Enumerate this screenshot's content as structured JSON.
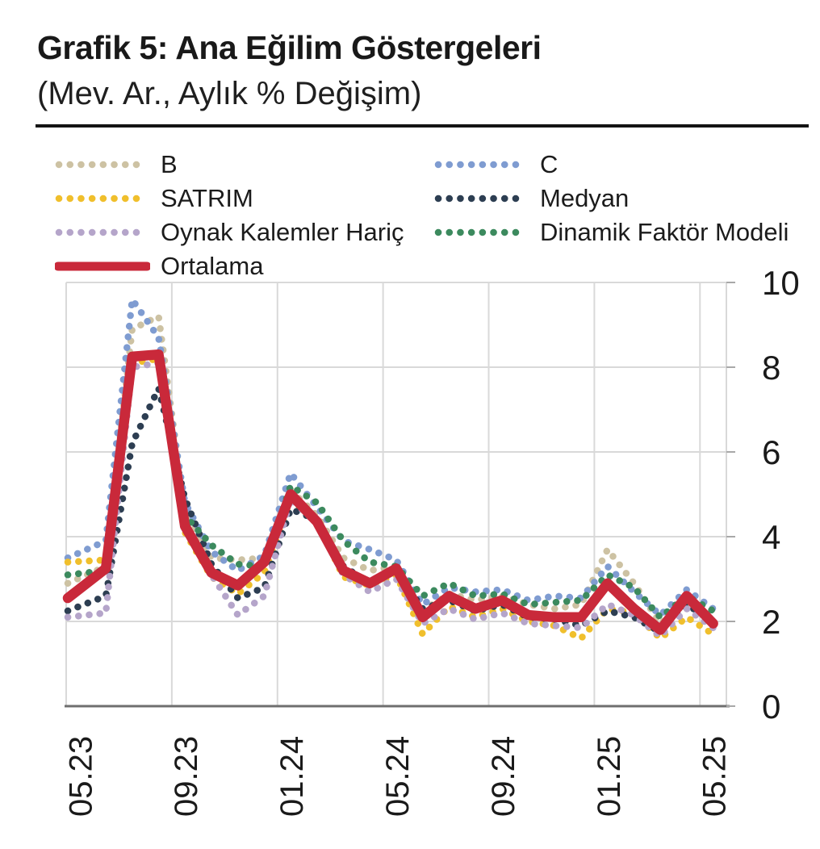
{
  "header": {
    "title": "Grafik 5: Ana Eğilim Göstergeleri",
    "subtitle": "(Mev. Ar., Aylık % Değişim)"
  },
  "legend": {
    "items": [
      {
        "label": "B",
        "color": "#cdc2a3",
        "style": "dotted"
      },
      {
        "label": "C",
        "color": "#7f9cd1",
        "style": "dotted"
      },
      {
        "label": "SATRIM",
        "color": "#f0bf2c",
        "style": "dotted"
      },
      {
        "label": "Medyan",
        "color": "#2d3e52",
        "style": "dotted"
      },
      {
        "label": "Oynak Kalemler Hariç",
        "color": "#b5a5ca",
        "style": "dotted"
      },
      {
        "label": "Dinamik Faktör Modeli",
        "color": "#3c8a5e",
        "style": "dotted"
      },
      {
        "label": "Ortalama",
        "color": "#c9293a",
        "style": "solid"
      }
    ]
  },
  "chart_data": {
    "type": "line",
    "title": "Grafik 5: Ana Eğilim Göstergeleri",
    "subtitle": "(Mev. Ar., Aylık % Değişim)",
    "categories": [
      "05.23",
      "06.23",
      "07.23",
      "08.23",
      "09.23",
      "10.23",
      "11.23",
      "12.23",
      "01.24",
      "02.24",
      "03.24",
      "04.24",
      "05.24",
      "06.24",
      "07.24",
      "08.24",
      "09.24",
      "10.24",
      "11.24",
      "12.24",
      "01.25",
      "02.25",
      "03.25",
      "04.25",
      "05.25"
    ],
    "x_tick_labels": [
      "05.23",
      "09.23",
      "01.24",
      "05.24",
      "09.24",
      "01.25",
      "05.25"
    ],
    "x_label_rotation": -90,
    "y_axis_side": "right",
    "ylim": [
      0,
      10
    ],
    "yticks": [
      0,
      2,
      4,
      6,
      8,
      10
    ],
    "grid": true,
    "legend_position": "top",
    "series": [
      {
        "name": "B",
        "color": "#cdc2a3",
        "style": "dotted",
        "values": [
          2.9,
          3.3,
          8.9,
          9.2,
          4.6,
          3.5,
          3.45,
          3.5,
          5.1,
          4.5,
          3.5,
          3.2,
          3.3,
          2.25,
          2.65,
          2.5,
          2.6,
          2.4,
          2.3,
          2.4,
          3.7,
          2.9,
          1.95,
          2.45,
          2.1
        ]
      },
      {
        "name": "C",
        "color": "#7f9cd1",
        "style": "dotted",
        "values": [
          3.5,
          3.9,
          9.6,
          8.7,
          4.8,
          3.65,
          3.2,
          3.55,
          5.5,
          4.7,
          3.9,
          3.7,
          3.45,
          2.4,
          2.8,
          2.7,
          2.75,
          2.5,
          2.6,
          2.55,
          3.3,
          2.7,
          2.15,
          2.75,
          2.3
        ]
      },
      {
        "name": "SATRIM",
        "color": "#f0bf2c",
        "style": "dotted",
        "values": [
          3.4,
          3.45,
          8.1,
          8.2,
          4.1,
          3.05,
          2.65,
          3.15,
          4.85,
          4.35,
          3.05,
          2.85,
          3.1,
          1.7,
          2.35,
          2.1,
          2.3,
          2.0,
          1.9,
          1.6,
          2.3,
          2.2,
          1.6,
          2.1,
          1.7
        ]
      },
      {
        "name": "Medyan",
        "color": "#2d3e52",
        "style": "dotted",
        "values": [
          2.25,
          2.6,
          6.2,
          7.5,
          4.9,
          3.35,
          2.55,
          2.8,
          4.65,
          4.4,
          3.3,
          2.9,
          3.2,
          2.3,
          2.5,
          2.25,
          2.4,
          2.1,
          2.05,
          1.9,
          2.25,
          2.1,
          1.75,
          2.4,
          2.0
        ]
      },
      {
        "name": "Oynak Kalemler Hariç",
        "color": "#b5a5ca",
        "style": "dotted",
        "values": [
          2.1,
          2.2,
          8.0,
          8.1,
          4.3,
          3.1,
          2.15,
          2.6,
          4.9,
          4.3,
          3.1,
          2.7,
          3.0,
          1.95,
          2.3,
          2.05,
          2.2,
          1.95,
          1.9,
          1.85,
          2.4,
          2.15,
          1.65,
          2.3,
          1.85
        ]
      },
      {
        "name": "Dinamik Faktör Modeli",
        "color": "#3c8a5e",
        "style": "dotted",
        "values": [
          3.1,
          3.2,
          8.2,
          8.3,
          4.5,
          3.8,
          3.35,
          3.3,
          5.2,
          4.8,
          3.9,
          3.4,
          3.3,
          2.6,
          2.9,
          2.6,
          2.65,
          2.4,
          2.45,
          2.5,
          3.1,
          2.8,
          2.1,
          2.6,
          2.25
        ]
      },
      {
        "name": "Ortalama",
        "color": "#c9293a",
        "style": "solid",
        "values": [
          2.55,
          3.25,
          8.25,
          8.3,
          4.25,
          3.15,
          2.85,
          3.4,
          5.0,
          4.35,
          3.2,
          2.9,
          3.25,
          2.1,
          2.6,
          2.3,
          2.5,
          2.15,
          2.1,
          2.1,
          2.9,
          2.3,
          1.8,
          2.6,
          1.95
        ]
      }
    ],
    "style": {
      "gridline_color": "#d9d9d9",
      "axis_color": "#6f6f6f",
      "tick_color": "#a8a8a8",
      "label_color": "#1a1a1a"
    }
  }
}
